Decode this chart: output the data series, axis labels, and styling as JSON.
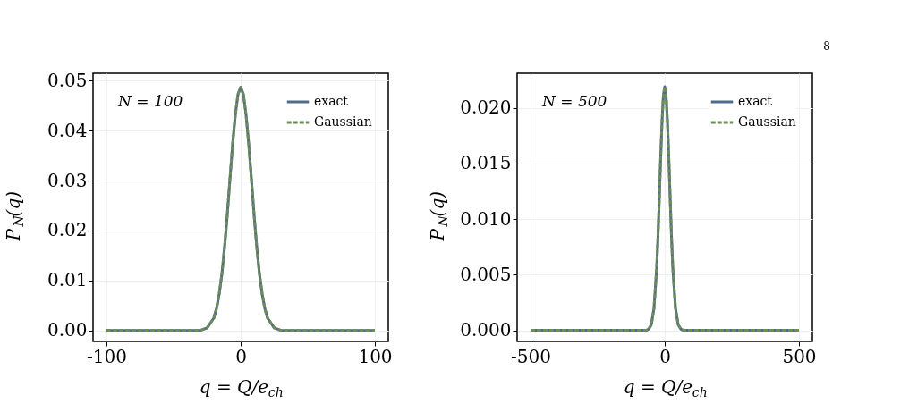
{
  "chart_data": [
    {
      "type": "line",
      "xlabel": "q = Q/e$_{ch}$",
      "ylabel": "P$_{N}$(q)",
      "annotations": [
        "N = 100"
      ],
      "x": [
        -100,
        -30,
        -25,
        -20,
        -18,
        -16,
        -14,
        -12,
        -10,
        -8,
        -6,
        -4,
        -2,
        0,
        2,
        4,
        6,
        8,
        10,
        12,
        14,
        16,
        18,
        20,
        25,
        30,
        100
      ],
      "series": [
        {
          "name": "exact",
          "color": "#4f6a8a",
          "line_style": "solid",
          "values": [
            0,
            0,
            0.0005,
            0.0025,
            0.0044,
            0.0073,
            0.0113,
            0.0167,
            0.0231,
            0.0303,
            0.0373,
            0.0432,
            0.0473,
            0.0487,
            0.0473,
            0.0432,
            0.0373,
            0.0303,
            0.0231,
            0.0167,
            0.0113,
            0.0073,
            0.0044,
            0.0025,
            0.0005,
            0,
            0
          ]
        },
        {
          "name": "Gaussian",
          "color": "#6e8b5a",
          "line_style": "dashed",
          "values": [
            0,
            0,
            0.0005,
            0.0025,
            0.0044,
            0.0073,
            0.0113,
            0.0167,
            0.0231,
            0.0303,
            0.0373,
            0.0432,
            0.0473,
            0.0487,
            0.0473,
            0.0432,
            0.0373,
            0.0303,
            0.0231,
            0.0167,
            0.0113,
            0.0073,
            0.0044,
            0.0025,
            0.0005,
            0,
            0
          ]
        }
      ],
      "xlim": [
        -110,
        110
      ],
      "xticks": [
        -100,
        0,
        100
      ],
      "ylim": [
        -0.0022,
        0.0515
      ],
      "yticks": [
        {
          "value": 0,
          "label": "0.00"
        },
        0.01,
        0.02,
        0.03,
        0.04,
        0.05
      ],
      "grid": true,
      "legend": "top right",
      "marker": "none"
    },
    {
      "type": "line",
      "xlabel": "q = Q/e$_{ch}$",
      "ylabel": "P$_{N}$(q)",
      "annotations": [
        "N = 500",
        "8"
      ],
      "x": [
        -500,
        -70,
        -60,
        -50,
        -40,
        -30,
        -25,
        -20,
        -15,
        -10,
        -5,
        0,
        5,
        10,
        15,
        20,
        25,
        30,
        40,
        50,
        60,
        70,
        500
      ],
      "series": [
        {
          "name": "exact",
          "color": "#4f6a8a",
          "line_style": "solid",
          "values": [
            0,
            0,
            0.0001,
            0.0005,
            0.002,
            0.0056,
            0.0085,
            0.012,
            0.0156,
            0.0188,
            0.0211,
            0.0219,
            0.0211,
            0.0188,
            0.0156,
            0.012,
            0.0085,
            0.0056,
            0.002,
            0.0005,
            0.0001,
            0,
            0
          ]
        },
        {
          "name": "Gaussian",
          "color": "#6e8b5a",
          "line_style": "dashed",
          "values": [
            0,
            0,
            0.0001,
            0.0005,
            0.002,
            0.0056,
            0.0085,
            0.012,
            0.0156,
            0.0188,
            0.0211,
            0.0219,
            0.0211,
            0.0188,
            0.0156,
            0.012,
            0.0085,
            0.0056,
            0.002,
            0.0005,
            0.0001,
            0,
            0
          ]
        }
      ],
      "xlim": [
        -550,
        550
      ],
      "xticks": [
        -500,
        0,
        500
      ],
      "ylim": [
        -0.001,
        0.0231
      ],
      "yticks": [
        {
          "value": 0,
          "label": "0.000"
        },
        {
          "value": 0.005,
          "label": "0.005"
        },
        {
          "value": 0.01,
          "label": "0.010"
        },
        {
          "value": 0.015,
          "label": "0.015"
        },
        {
          "value": 0.02,
          "label": "0.020"
        }
      ],
      "grid": true,
      "legend": "top right",
      "marker": "none"
    }
  ]
}
